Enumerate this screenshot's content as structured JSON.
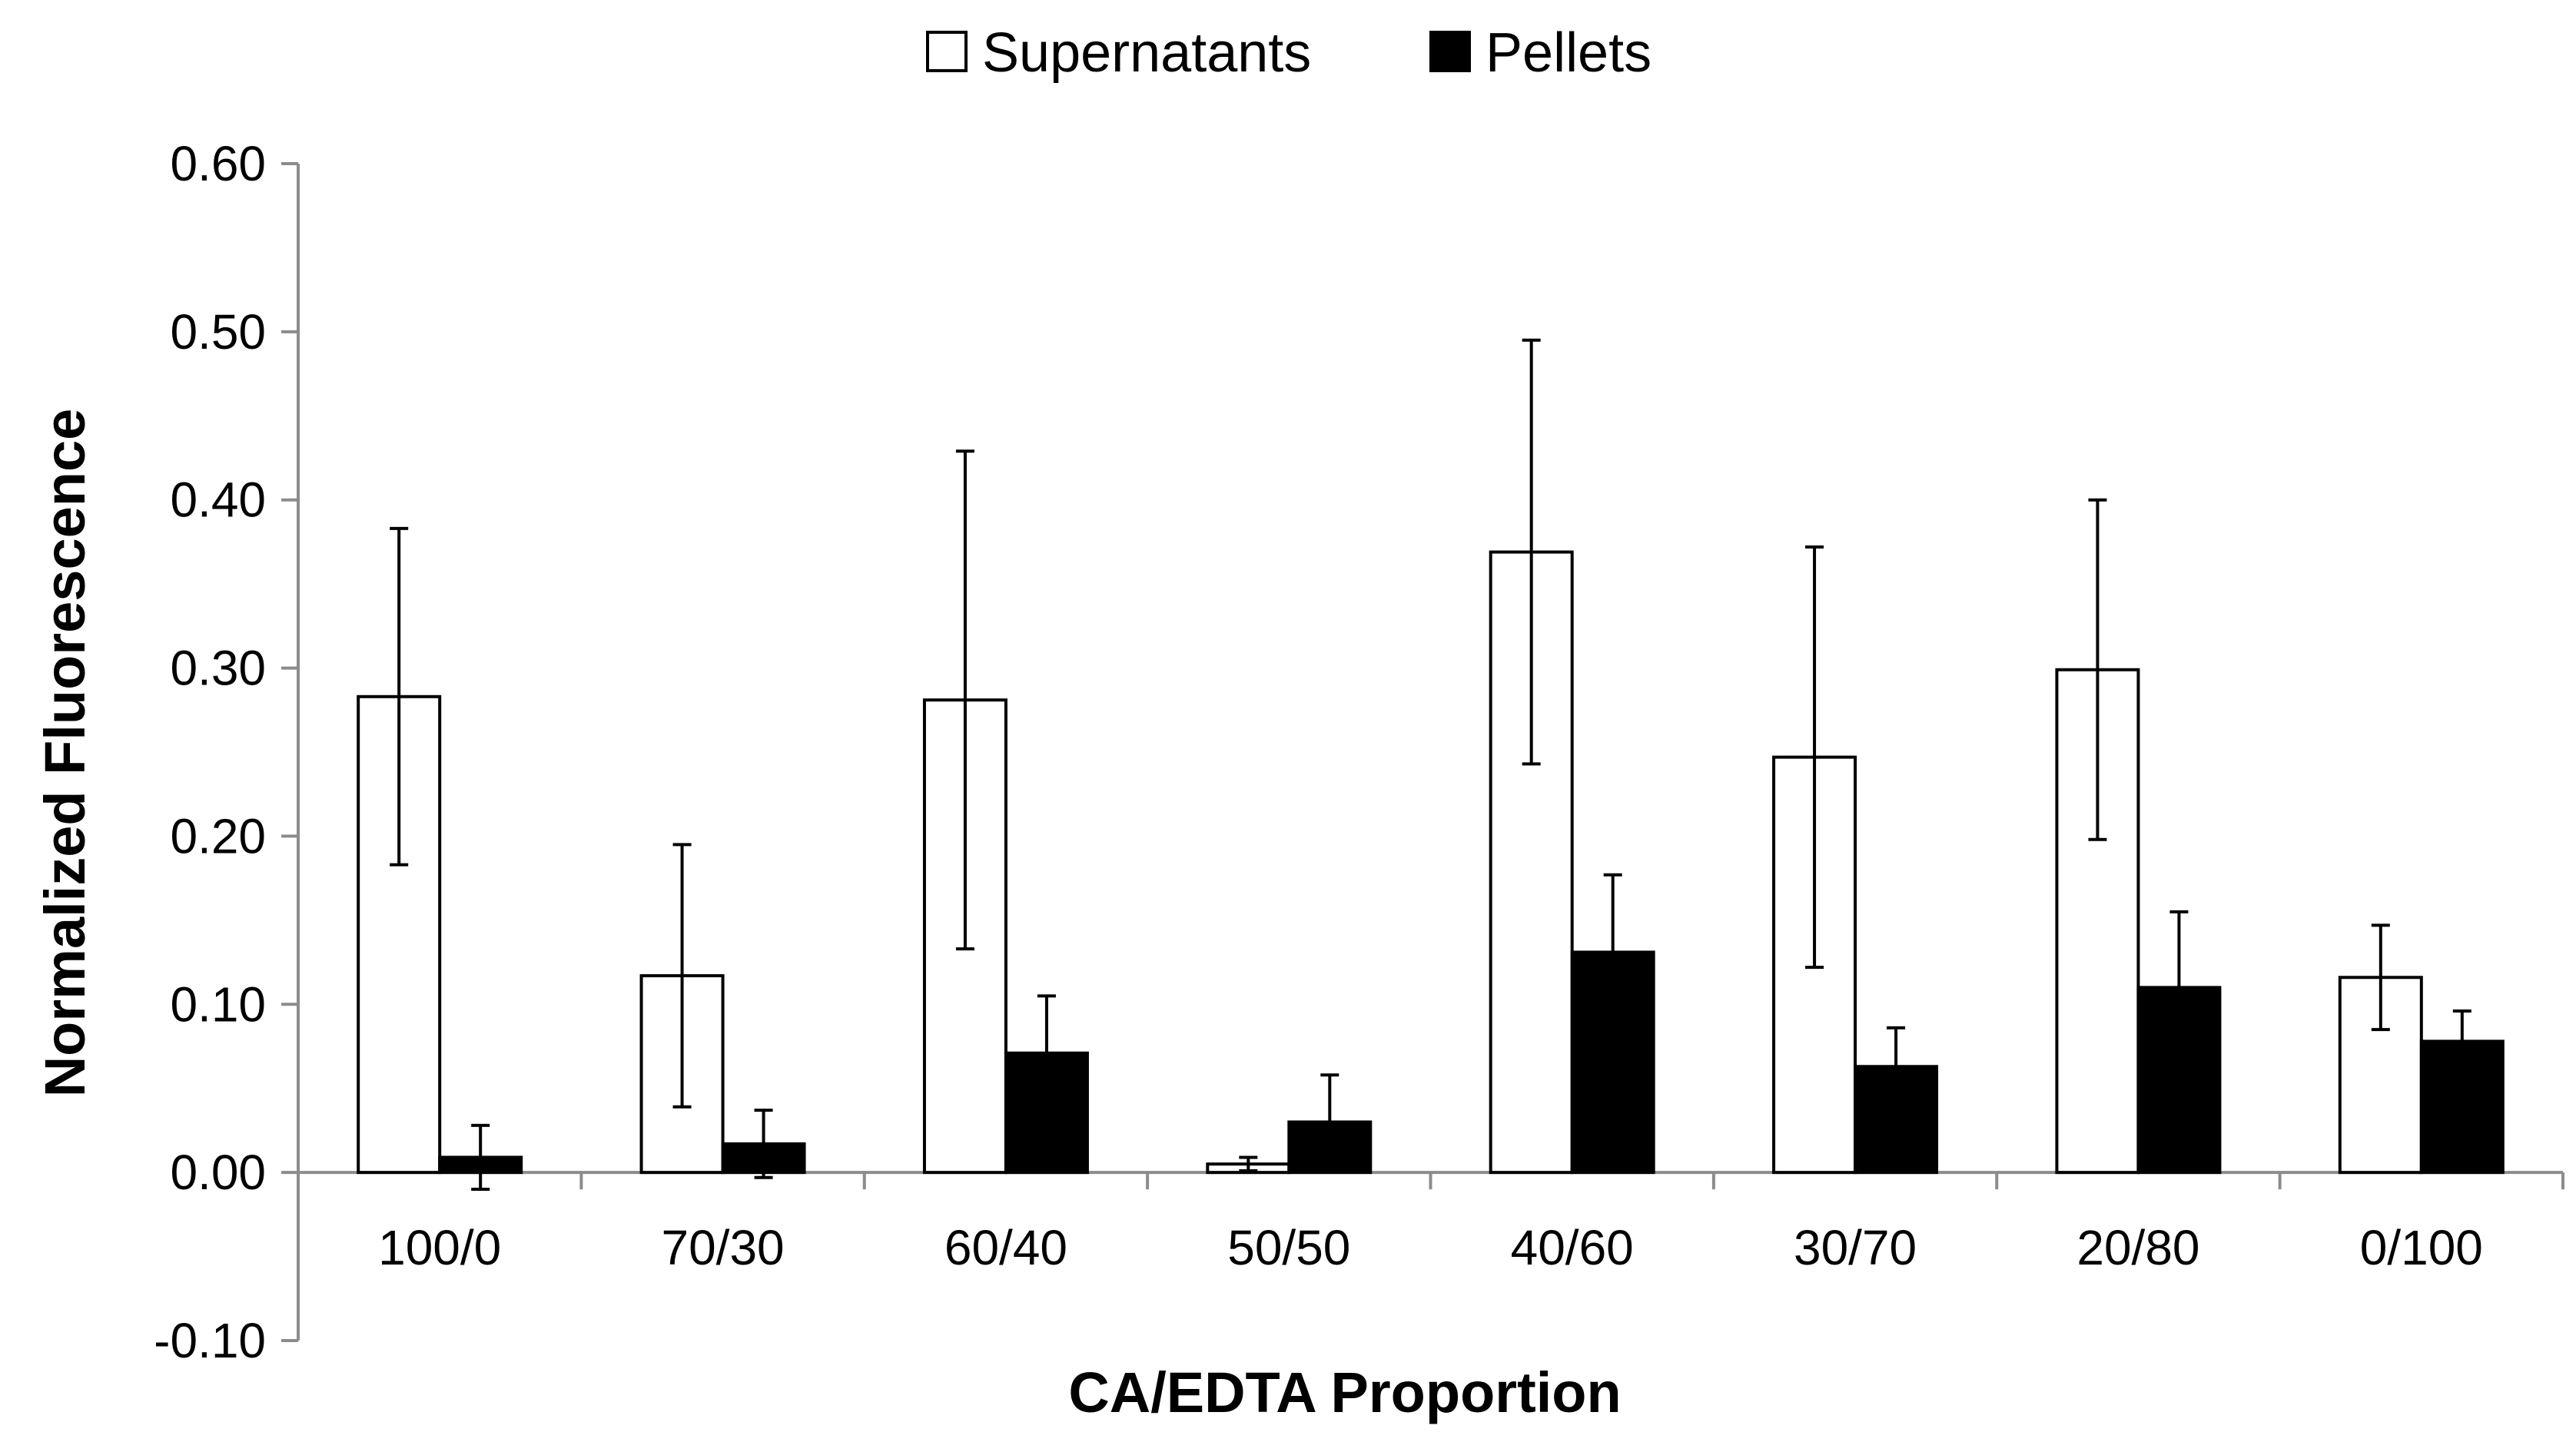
{
  "chart_data": {
    "type": "bar",
    "title": "",
    "xlabel": "CA/EDTA Proportion",
    "ylabel": "Normalized Fluorescence",
    "ylim": [
      -0.1,
      0.6
    ],
    "yticks": [
      0.6,
      0.5,
      0.4,
      0.3,
      0.2,
      0.1,
      0.0,
      -0.1
    ],
    "ytick_labels": [
      "0.60",
      "0.50",
      "0.40",
      "0.30",
      "0.20",
      "0.10",
      "0.00",
      "-0.10"
    ],
    "grid": false,
    "legend_position": "top-center",
    "categories": [
      "100/0",
      "70/30",
      "60/40",
      "50/50",
      "40/60",
      "30/70",
      "20/80",
      "0/100"
    ],
    "series": [
      {
        "name": "Supernatants",
        "fill": "#ffffff",
        "stroke": "#000000",
        "values": [
          0.283,
          0.117,
          0.281,
          0.005,
          0.369,
          0.247,
          0.299,
          0.116
        ],
        "errors": [
          0.1,
          0.078,
          0.148,
          0.004,
          0.126,
          0.125,
          0.101,
          0.031
        ]
      },
      {
        "name": "Pellets",
        "fill": "#000000",
        "stroke": "#000000",
        "values": [
          0.009,
          0.017,
          0.071,
          0.03,
          0.131,
          0.063,
          0.11,
          0.078
        ],
        "errors": [
          0.019,
          0.02,
          0.034,
          0.028,
          0.046,
          0.023,
          0.045,
          0.018
        ]
      }
    ]
  }
}
